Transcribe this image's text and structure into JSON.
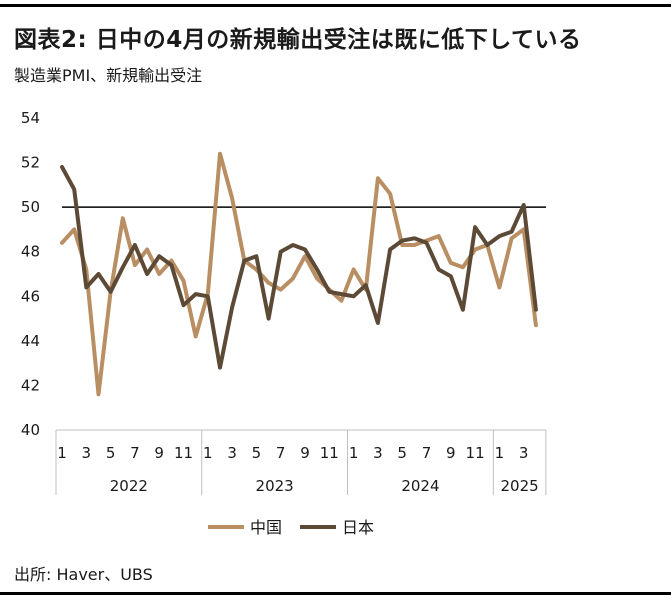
{
  "header": {
    "title": "図表2: 日中の4月の新規輸出受注は既に低下している",
    "subtitle": "製造業PMI、新規輸出受注"
  },
  "footer": {
    "source": "出所: Haver、UBS"
  },
  "colors": {
    "china": "#b98e63",
    "japan": "#5c4a37",
    "reference_line": "#000000",
    "axis": "#bfbfbf"
  },
  "chart_data": {
    "type": "line",
    "ylim": [
      40,
      54
    ],
    "yticks": [
      40,
      42,
      44,
      46,
      48,
      50,
      52,
      54
    ],
    "reference_value": 50,
    "grid": false,
    "legend_position": "bottom",
    "x_month_labels": [
      "1",
      "",
      "3",
      "",
      "5",
      "",
      "7",
      "",
      "9",
      "",
      "11",
      "",
      "1",
      "",
      "3",
      "",
      "5",
      "",
      "7",
      "",
      "9",
      "",
      "11",
      "",
      "1",
      "",
      "3",
      "",
      "5",
      "",
      "7",
      "",
      "9",
      "",
      "11",
      "",
      "1",
      "",
      "3",
      ""
    ],
    "x_year_labels": [
      "2022",
      "2023",
      "2024",
      "2025"
    ],
    "year_month_counts": [
      12,
      12,
      12,
      4
    ],
    "series": [
      {
        "name": "中国",
        "color": "#b98e63",
        "values": [
          48.4,
          49.0,
          47.2,
          41.6,
          46.2,
          49.5,
          47.4,
          48.1,
          47.0,
          47.6,
          46.7,
          44.2,
          46.1,
          52.4,
          50.4,
          47.6,
          47.2,
          46.6,
          46.3,
          46.8,
          47.8,
          46.8,
          46.3,
          45.8,
          47.2,
          46.3,
          51.3,
          50.6,
          48.3,
          48.3,
          48.5,
          48.7,
          47.5,
          47.3,
          48.1,
          48.3,
          46.4,
          48.6,
          49.0,
          44.7
        ]
      },
      {
        "name": "日本",
        "color": "#5c4a37",
        "values": [
          51.8,
          50.8,
          46.4,
          47.0,
          46.2,
          47.3,
          48.3,
          47.0,
          47.8,
          47.4,
          45.6,
          46.1,
          46.0,
          42.8,
          45.5,
          47.6,
          47.8,
          45.0,
          48.0,
          48.3,
          48.1,
          47.2,
          46.2,
          46.1,
          46.0,
          46.5,
          44.8,
          48.1,
          48.5,
          48.6,
          48.4,
          47.2,
          46.9,
          45.4,
          49.1,
          48.3,
          48.7,
          48.9,
          50.1,
          45.4
        ]
      }
    ]
  }
}
